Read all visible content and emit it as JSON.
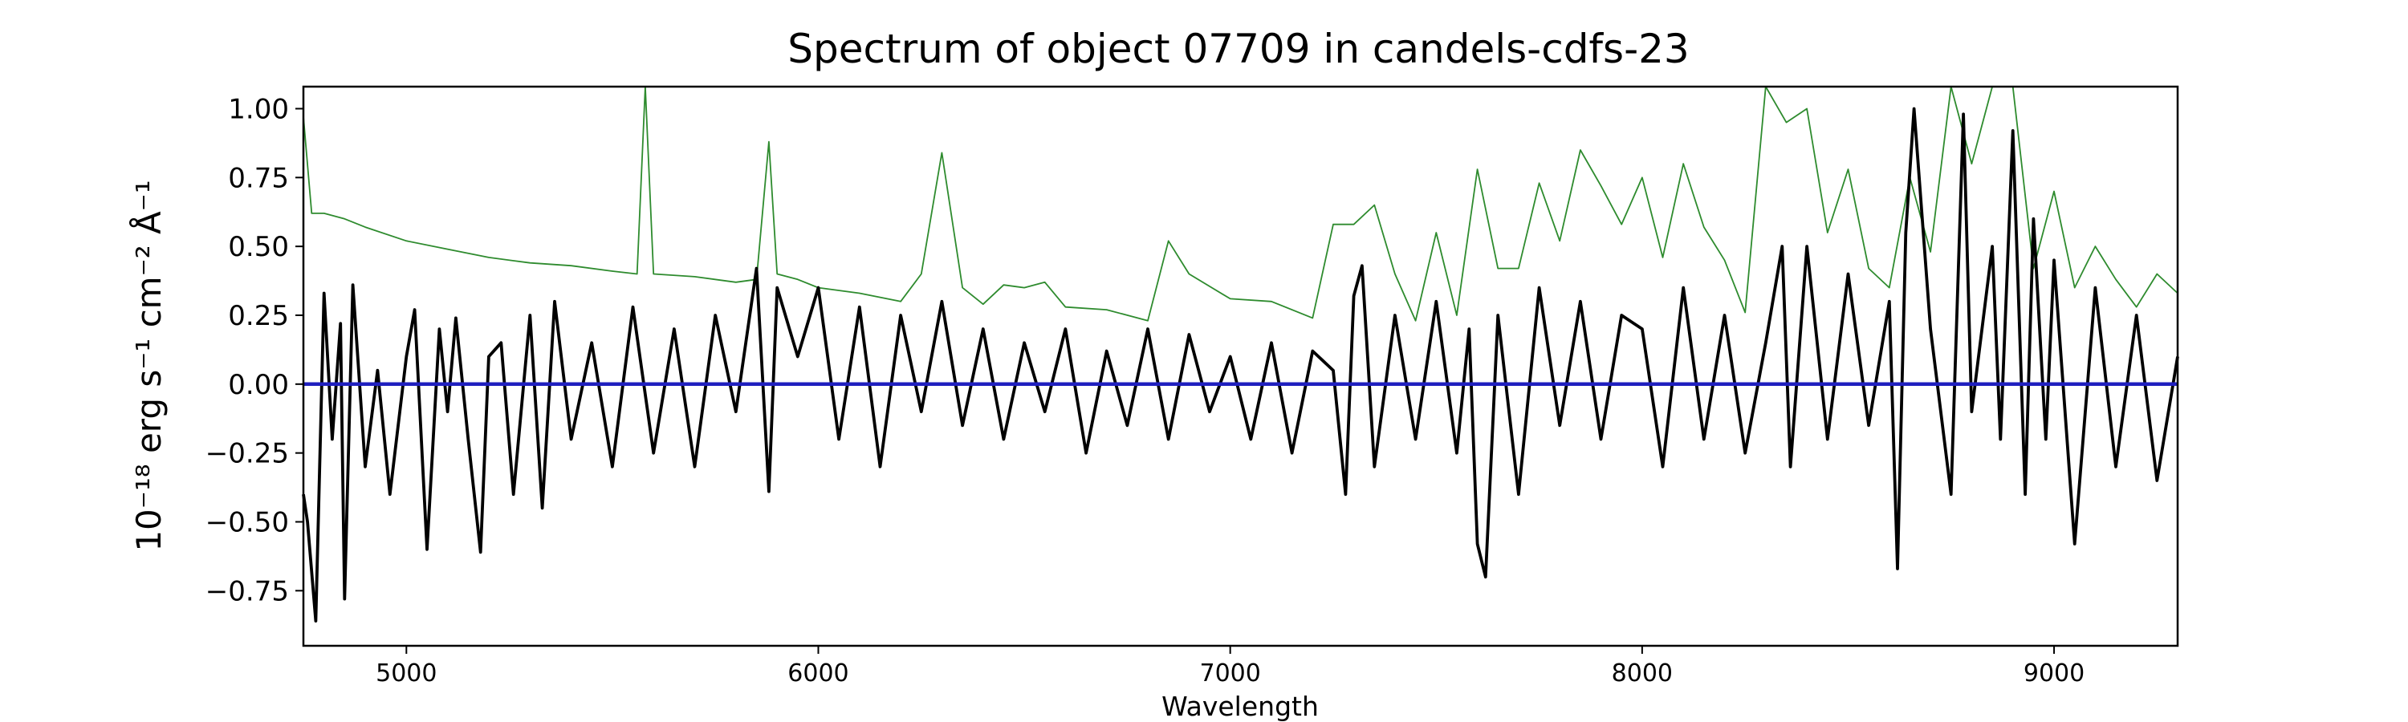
{
  "chart_data": {
    "type": "line",
    "title": "Spectrum of object 07709 in candels-cdfs-23",
    "xlabel": "Wavelength",
    "ylabel": "10⁻¹⁸ erg s⁻¹ cm⁻² Å⁻¹",
    "xlim": [
      4750,
      9300
    ],
    "ylim": [
      -0.95,
      1.08
    ],
    "xticks": [
      5000,
      6000,
      7000,
      8000,
      9000
    ],
    "yticks": [
      -0.75,
      -0.5,
      -0.25,
      0.0,
      0.25,
      0.5,
      0.75,
      1.0
    ],
    "ytick_labels": [
      "−0.75",
      "−0.50",
      "−0.25",
      "0.00",
      "0.25",
      "0.50",
      "0.75",
      "1.00"
    ],
    "grid": false,
    "legend": "none",
    "series": [
      {
        "color": "#2e8b2e",
        "style": "thin",
        "x": [
          4750,
          4770,
          4800,
          4850,
          4900,
          5000,
          5100,
          5200,
          5300,
          5400,
          5500,
          5560,
          5580,
          5600,
          5700,
          5800,
          5850,
          5880,
          5900,
          5950,
          6000,
          6100,
          6200,
          6250,
          6300,
          6350,
          6400,
          6450,
          6500,
          6550,
          6600,
          6700,
          6800,
          6850,
          6900,
          7000,
          7100,
          7200,
          7250,
          7300,
          7350,
          7400,
          7450,
          7500,
          7550,
          7600,
          7650,
          7700,
          7750,
          7800,
          7850,
          7900,
          7950,
          8000,
          8050,
          8100,
          8150,
          8200,
          8250,
          8300,
          8350,
          8400,
          8450,
          8500,
          8550,
          8600,
          8650,
          8700,
          8750,
          8800,
          8850,
          8900,
          8950,
          9000,
          9050,
          9100,
          9150,
          9200,
          9250,
          9300
        ],
        "y": [
          0.97,
          0.62,
          0.62,
          0.6,
          0.57,
          0.52,
          0.49,
          0.46,
          0.44,
          0.43,
          0.41,
          0.4,
          1.08,
          0.4,
          0.39,
          0.37,
          0.38,
          0.88,
          0.4,
          0.38,
          0.35,
          0.33,
          0.3,
          0.4,
          0.84,
          0.35,
          0.29,
          0.36,
          0.35,
          0.37,
          0.28,
          0.27,
          0.23,
          0.52,
          0.4,
          0.31,
          0.3,
          0.24,
          0.58,
          0.58,
          0.65,
          0.4,
          0.23,
          0.55,
          0.25,
          0.78,
          0.42,
          0.42,
          0.73,
          0.52,
          0.85,
          0.72,
          0.58,
          0.75,
          0.46,
          0.8,
          0.57,
          0.45,
          0.26,
          1.08,
          0.95,
          1.0,
          0.55,
          0.78,
          0.42,
          0.35,
          0.75,
          0.48,
          1.08,
          0.8,
          1.08,
          1.08,
          0.42,
          0.7,
          0.35,
          0.5,
          0.38,
          0.28,
          0.4,
          0.33
        ]
      },
      {
        "color": "#000000",
        "style": "thick",
        "x": [
          4750,
          4760,
          4780,
          4800,
          4820,
          4840,
          4850,
          4870,
          4900,
          4930,
          4960,
          5000,
          5020,
          5050,
          5080,
          5100,
          5120,
          5150,
          5180,
          5200,
          5230,
          5260,
          5300,
          5330,
          5360,
          5400,
          5450,
          5500,
          5550,
          5600,
          5650,
          5700,
          5750,
          5800,
          5850,
          5880,
          5900,
          5950,
          6000,
          6050,
          6100,
          6150,
          6200,
          6250,
          6300,
          6350,
          6400,
          6450,
          6500,
          6550,
          6600,
          6650,
          6700,
          6750,
          6800,
          6850,
          6900,
          6950,
          7000,
          7050,
          7100,
          7150,
          7200,
          7250,
          7280,
          7300,
          7320,
          7350,
          7400,
          7450,
          7500,
          7550,
          7580,
          7600,
          7620,
          7650,
          7700,
          7750,
          7800,
          7850,
          7900,
          7950,
          8000,
          8050,
          8100,
          8150,
          8200,
          8250,
          8300,
          8340,
          8360,
          8400,
          8450,
          8500,
          8550,
          8600,
          8620,
          8640,
          8660,
          8700,
          8750,
          8780,
          8800,
          8850,
          8870,
          8900,
          8930,
          8950,
          8980,
          9000,
          9050,
          9100,
          9150,
          9200,
          9250,
          9300
        ],
        "y": [
          -0.4,
          -0.5,
          -0.86,
          0.33,
          -0.2,
          0.22,
          -0.78,
          0.36,
          -0.3,
          0.05,
          -0.4,
          0.1,
          0.27,
          -0.6,
          0.2,
          -0.1,
          0.24,
          -0.2,
          -0.61,
          0.1,
          0.15,
          -0.4,
          0.25,
          -0.45,
          0.3,
          -0.2,
          0.15,
          -0.3,
          0.28,
          -0.25,
          0.2,
          -0.3,
          0.25,
          -0.1,
          0.42,
          -0.39,
          0.35,
          0.1,
          0.35,
          -0.2,
          0.28,
          -0.3,
          0.25,
          -0.1,
          0.3,
          -0.15,
          0.2,
          -0.2,
          0.15,
          -0.1,
          0.2,
          -0.25,
          0.12,
          -0.15,
          0.2,
          -0.2,
          0.18,
          -0.1,
          0.1,
          -0.2,
          0.15,
          -0.25,
          0.12,
          0.05,
          -0.4,
          0.32,
          0.43,
          -0.3,
          0.25,
          -0.2,
          0.3,
          -0.25,
          0.2,
          -0.58,
          -0.7,
          0.25,
          -0.4,
          0.35,
          -0.15,
          0.3,
          -0.2,
          0.25,
          0.2,
          -0.3,
          0.35,
          -0.2,
          0.25,
          -0.25,
          0.15,
          0.5,
          -0.3,
          0.5,
          -0.2,
          0.4,
          -0.15,
          0.3,
          -0.67,
          0.55,
          1.0,
          0.2,
          -0.4,
          0.98,
          -0.1,
          0.5,
          -0.2,
          0.92,
          -0.4,
          0.6,
          -0.2,
          0.45,
          -0.58,
          0.35,
          -0.3,
          0.25,
          -0.35,
          0.1
        ]
      },
      {
        "color": "#1f1fbf",
        "style": "zero",
        "x": [
          4750,
          9300
        ],
        "y": [
          0.0,
          0.0
        ]
      }
    ]
  }
}
